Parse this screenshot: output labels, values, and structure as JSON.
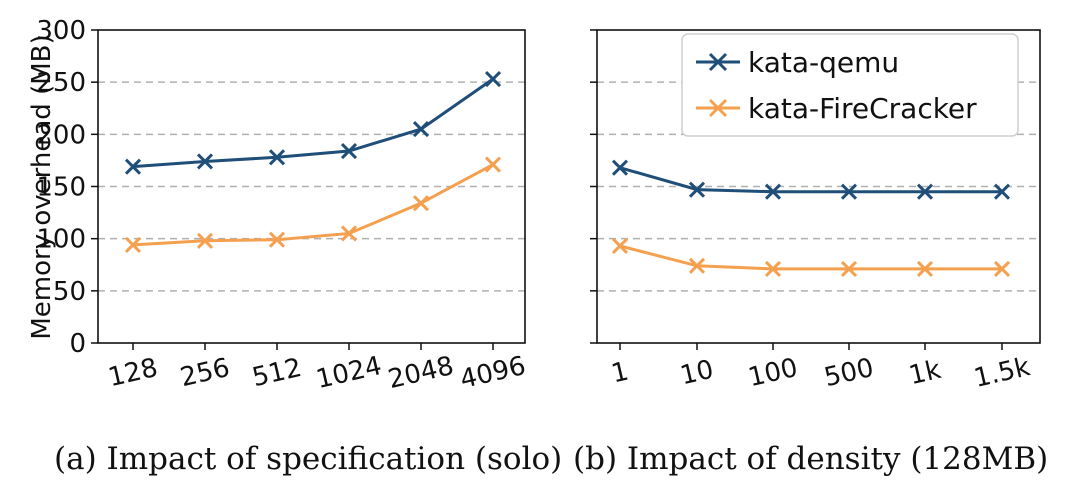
{
  "colors": {
    "qemu": "#1f4e79",
    "firecracker": "#f4a04f",
    "grid": "#b0b0b0",
    "axis": "#111111"
  },
  "chart_data": [
    {
      "type": "line",
      "caption": "(a) Impact of specification (solo)",
      "ylabel": "Memory overhead (MB)",
      "ylim": [
        0,
        300
      ],
      "yticks": [
        0,
        50,
        100,
        150,
        200,
        250,
        300
      ],
      "categories": [
        "128",
        "256",
        "512",
        "1024",
        "2048",
        "4096"
      ],
      "grid": "horizontal-dashed",
      "series": [
        {
          "name": "kata-qemu",
          "values": [
            169,
            174,
            178,
            184,
            205,
            253
          ]
        },
        {
          "name": "kata-FireCracker",
          "values": [
            94,
            98,
            99,
            105,
            134,
            171
          ]
        }
      ]
    },
    {
      "type": "line",
      "caption": "(b) Impact of density (128MB)",
      "ylim": [
        0,
        300
      ],
      "yticks": [
        0,
        50,
        100,
        150,
        200,
        250,
        300
      ],
      "categories": [
        "1",
        "10",
        "100",
        "500",
        "1k",
        "1.5k"
      ],
      "grid": "horizontal-dashed",
      "legend": {
        "position": "top-right",
        "entries": [
          "kata-qemu",
          "kata-FireCracker"
        ]
      },
      "series": [
        {
          "name": "kata-qemu",
          "values": [
            168,
            147,
            145,
            145,
            145,
            145
          ]
        },
        {
          "name": "kata-FireCracker",
          "values": [
            93,
            74,
            71,
            71,
            71,
            71
          ]
        }
      ]
    }
  ]
}
